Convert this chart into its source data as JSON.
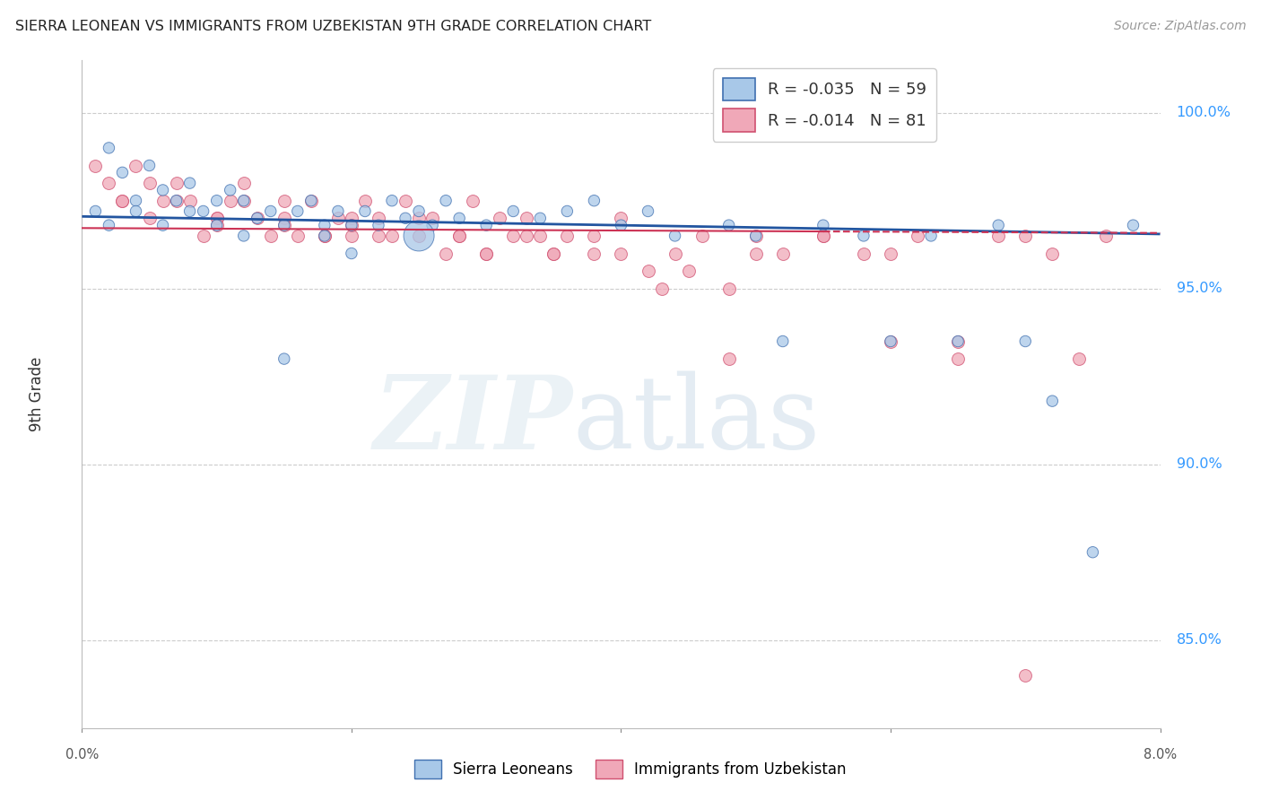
{
  "title": "SIERRA LEONEAN VS IMMIGRANTS FROM UZBEKISTAN 9TH GRADE CORRELATION CHART",
  "source": "Source: ZipAtlas.com",
  "ylabel": "9th Grade",
  "ylabel_right_ticks": [
    "100.0%",
    "95.0%",
    "90.0%",
    "85.0%"
  ],
  "ylabel_right_vals": [
    1.0,
    0.95,
    0.9,
    0.85
  ],
  "xmin": 0.0,
  "xmax": 0.08,
  "ymin": 0.825,
  "ymax": 1.015,
  "blue_label": "Sierra Leoneans",
  "pink_label": "Immigrants from Uzbekistan",
  "blue_R": "-0.035",
  "blue_N": "59",
  "pink_R": "-0.014",
  "pink_N": "81",
  "blue_color": "#a8c8e8",
  "pink_color": "#f0a8b8",
  "blue_edge_color": "#4070b0",
  "pink_edge_color": "#d05070",
  "blue_line_color": "#2255a0",
  "pink_line_color": "#cc3355",
  "blue_scatter_x": [
    0.001,
    0.002,
    0.003,
    0.004,
    0.005,
    0.006,
    0.007,
    0.008,
    0.009,
    0.01,
    0.011,
    0.012,
    0.013,
    0.014,
    0.015,
    0.016,
    0.017,
    0.018,
    0.019,
    0.02,
    0.021,
    0.022,
    0.023,
    0.024,
    0.025,
    0.026,
    0.027,
    0.028,
    0.03,
    0.032,
    0.034,
    0.036,
    0.038,
    0.04,
    0.042,
    0.044,
    0.048,
    0.05,
    0.052,
    0.055,
    0.058,
    0.06,
    0.063,
    0.065,
    0.068,
    0.07,
    0.072,
    0.075,
    0.078,
    0.002,
    0.004,
    0.006,
    0.008,
    0.01,
    0.012,
    0.015,
    0.018,
    0.02,
    0.025
  ],
  "blue_scatter_y": [
    0.972,
    0.99,
    0.983,
    0.975,
    0.985,
    0.978,
    0.975,
    0.98,
    0.972,
    0.975,
    0.978,
    0.975,
    0.97,
    0.972,
    0.968,
    0.972,
    0.975,
    0.968,
    0.972,
    0.968,
    0.972,
    0.968,
    0.975,
    0.97,
    0.972,
    0.968,
    0.975,
    0.97,
    0.968,
    0.972,
    0.97,
    0.972,
    0.975,
    0.968,
    0.972,
    0.965,
    0.968,
    0.965,
    0.935,
    0.968,
    0.965,
    0.935,
    0.965,
    0.935,
    0.968,
    0.935,
    0.918,
    0.875,
    0.968,
    0.968,
    0.972,
    0.968,
    0.972,
    0.968,
    0.965,
    0.93,
    0.965,
    0.96,
    0.965
  ],
  "blue_scatter_sizes": [
    80,
    80,
    80,
    80,
    80,
    80,
    80,
    80,
    80,
    80,
    80,
    80,
    80,
    80,
    80,
    80,
    80,
    80,
    80,
    80,
    80,
    80,
    80,
    80,
    80,
    80,
    80,
    80,
    80,
    80,
    80,
    80,
    80,
    80,
    80,
    80,
    80,
    80,
    80,
    80,
    80,
    80,
    80,
    80,
    80,
    80,
    80,
    80,
    80,
    80,
    80,
    80,
    80,
    80,
    80,
    80,
    80,
    80,
    600
  ],
  "pink_scatter_x": [
    0.001,
    0.002,
    0.003,
    0.004,
    0.005,
    0.006,
    0.007,
    0.008,
    0.009,
    0.01,
    0.011,
    0.012,
    0.013,
    0.014,
    0.015,
    0.016,
    0.017,
    0.018,
    0.019,
    0.02,
    0.021,
    0.022,
    0.023,
    0.024,
    0.025,
    0.026,
    0.027,
    0.028,
    0.029,
    0.03,
    0.031,
    0.032,
    0.033,
    0.034,
    0.035,
    0.036,
    0.038,
    0.04,
    0.042,
    0.044,
    0.046,
    0.048,
    0.05,
    0.052,
    0.055,
    0.058,
    0.06,
    0.062,
    0.065,
    0.068,
    0.07,
    0.072,
    0.074,
    0.076,
    0.003,
    0.005,
    0.007,
    0.01,
    0.012,
    0.015,
    0.018,
    0.02,
    0.022,
    0.025,
    0.028,
    0.03,
    0.033,
    0.035,
    0.038,
    0.04,
    0.043,
    0.045,
    0.048,
    0.05,
    0.055,
    0.06,
    0.065,
    0.07,
    0.01,
    0.015,
    0.02
  ],
  "pink_scatter_y": [
    0.985,
    0.98,
    0.975,
    0.985,
    0.97,
    0.975,
    0.98,
    0.975,
    0.965,
    0.97,
    0.975,
    0.98,
    0.97,
    0.965,
    0.975,
    0.965,
    0.975,
    0.965,
    0.97,
    0.965,
    0.975,
    0.97,
    0.965,
    0.975,
    0.965,
    0.97,
    0.96,
    0.965,
    0.975,
    0.96,
    0.97,
    0.965,
    0.97,
    0.965,
    0.96,
    0.965,
    0.96,
    0.97,
    0.955,
    0.96,
    0.965,
    0.95,
    0.965,
    0.96,
    0.965,
    0.96,
    0.935,
    0.965,
    0.93,
    0.965,
    0.965,
    0.96,
    0.93,
    0.965,
    0.975,
    0.98,
    0.975,
    0.97,
    0.975,
    0.97,
    0.965,
    0.97,
    0.965,
    0.97,
    0.965,
    0.96,
    0.965,
    0.96,
    0.965,
    0.96,
    0.95,
    0.955,
    0.93,
    0.96,
    0.965,
    0.96,
    0.935,
    0.84,
    0.968,
    0.968,
    0.968
  ],
  "blue_trendline_x": [
    0.0,
    0.08
  ],
  "blue_trendline_y": [
    0.9705,
    0.9655
  ],
  "pink_trendline_x": [
    0.0,
    0.08
  ],
  "pink_trendline_y": [
    0.9672,
    0.9658
  ]
}
